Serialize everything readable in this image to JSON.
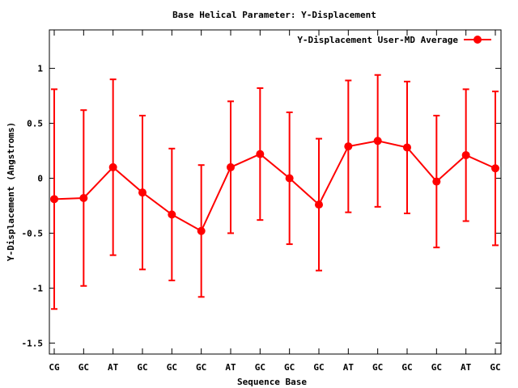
{
  "chart_data": {
    "type": "line",
    "title": "Base  Helical Parameter: Y-Displacement",
    "xlabel": "Sequence Base",
    "ylabel": "Y-Displacement (Angstroms)",
    "ylim": [
      -1.6,
      1.35
    ],
    "yticks": [
      -1.5,
      -1,
      -0.5,
      0,
      0.5,
      1
    ],
    "ytick_labels": [
      "-1.5",
      "-1",
      "-0.5",
      "0",
      "0.5",
      "1"
    ],
    "categories": [
      "CG",
      "GC",
      "AT",
      "GC",
      "GC",
      "GC",
      "AT",
      "GC",
      "GC",
      "GC",
      "AT",
      "GC",
      "GC",
      "GC",
      "AT",
      "GC"
    ],
    "legend_position": "top-right",
    "grid": false,
    "series": [
      {
        "name": "Y-Displacement User-MD Average",
        "color": "#ff0000",
        "values": [
          -0.19,
          -0.18,
          0.1,
          -0.13,
          -0.33,
          -0.48,
          0.1,
          0.22,
          0.0,
          -0.24,
          0.29,
          0.34,
          0.28,
          -0.03,
          0.21,
          0.09
        ],
        "error": [
          1.0,
          0.8,
          0.8,
          0.7,
          0.6,
          0.6,
          0.6,
          0.6,
          0.6,
          0.6,
          0.6,
          0.6,
          0.6,
          0.6,
          0.6,
          0.7
        ]
      }
    ]
  }
}
